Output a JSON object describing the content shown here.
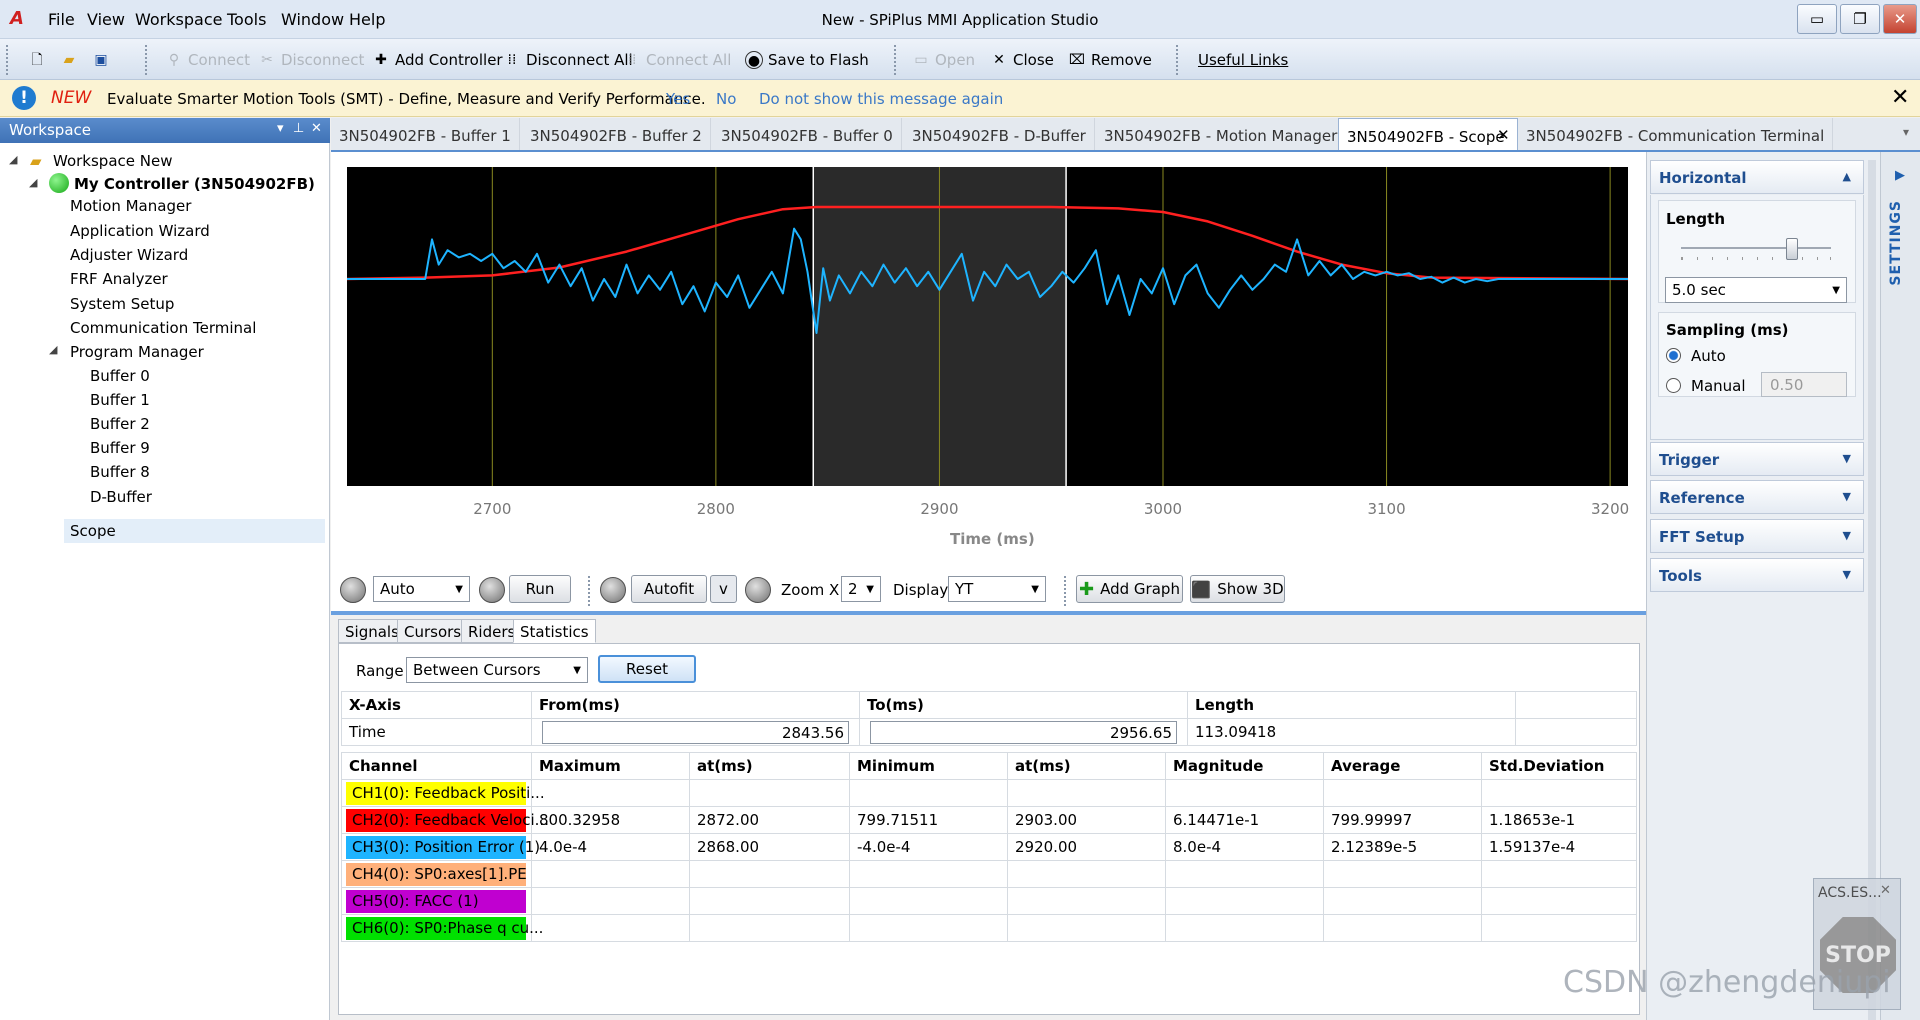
{
  "app": {
    "title": "New - SPiPlus MMI Application Studio",
    "logo": "A"
  },
  "menu": [
    "File",
    "View",
    "Workspace",
    "Tools",
    "Window",
    "Help"
  ],
  "window_controls": {
    "minimize": "▭",
    "restore": "❐",
    "close": "✕"
  },
  "toolbar": {
    "connect": "Connect",
    "disconnect": "Disconnect",
    "add_controller": "Add Controller",
    "disconnect_all": "Disconnect All",
    "connect_all": "Connect All",
    "save_to_flash": "Save to Flash",
    "open": "Open",
    "close": "Close",
    "remove": "Remove",
    "useful_links": "Useful Links"
  },
  "infobar": {
    "new": "NEW",
    "message": "Evaluate Smarter Motion Tools (SMT) - Define, Measure and Verify Performance.",
    "yes": "Yes",
    "no": "No",
    "dont_show": "Do not show this message again",
    "close": "✕"
  },
  "workspace": {
    "header": "Workspace",
    "root": "Workspace New",
    "controller": "My Controller (3N504902FB)",
    "items": [
      "Motion Manager",
      "Application Wizard",
      "Adjuster Wizard",
      "FRF Analyzer",
      "System Setup",
      "Communication Terminal",
      "Program Manager"
    ],
    "buffers": [
      "Buffer 0",
      "Buffer 1",
      "Buffer 2",
      "Buffer 9",
      "Buffer 8",
      "D-Buffer"
    ],
    "scope": "Scope"
  },
  "tabs": [
    "3N504902FB - Buffer 1",
    "3N504902FB - Buffer 2",
    "3N504902FB - Buffer 0",
    "3N504902FB - D-Buffer",
    "3N504902FB - Motion Manager",
    "3N504902FB - Scope",
    "3N504902FB - Communication Terminal"
  ],
  "active_tab": 5,
  "chart_data": {
    "type": "line",
    "xlabel": "Time (ms)",
    "xlim": [
      2635,
      3208
    ],
    "xticks": [
      2700,
      2800,
      2900,
      3000,
      3100,
      3200
    ],
    "cursor_region": [
      2843.56,
      2956.65
    ],
    "grid_x": [
      2700,
      2800,
      2900,
      3000,
      3100,
      3200
    ],
    "background": "#000000",
    "series": [
      {
        "color": "#ff2020",
        "x": [
          2635,
          2670,
          2700,
          2730,
          2760,
          2790,
          2810,
          2830,
          2845,
          2900,
          2950,
          2980,
          3000,
          3020,
          3040,
          3060,
          3080,
          3100,
          3120,
          3208
        ],
        "y": [
          0.0,
          0.02,
          0.05,
          0.16,
          0.38,
          0.65,
          0.83,
          0.97,
          1.0,
          1.0,
          1.0,
          0.98,
          0.93,
          0.8,
          0.6,
          0.38,
          0.2,
          0.08,
          0.02,
          0.0
        ]
      },
      {
        "color": "#1eb4ff",
        "x": [
          2635,
          2670,
          2673,
          2676,
          2680,
          2685,
          2690,
          2695,
          2700,
          2705,
          2710,
          2715,
          2720,
          2725,
          2730,
          2735,
          2740,
          2745,
          2750,
          2755,
          2760,
          2765,
          2770,
          2775,
          2780,
          2785,
          2790,
          2795,
          2800,
          2805,
          2810,
          2815,
          2820,
          2825,
          2830,
          2835,
          2838,
          2841,
          2845,
          2848,
          2851,
          2855,
          2860,
          2865,
          2870,
          2875,
          2880,
          2885,
          2890,
          2895,
          2900,
          2905,
          2910,
          2915,
          2920,
          2925,
          2930,
          2935,
          2940,
          2945,
          2950,
          2955,
          2960,
          2965,
          2970,
          2975,
          2980,
          2985,
          2990,
          2995,
          3000,
          3005,
          3010,
          3015,
          3020,
          3025,
          3030,
          3035,
          3040,
          3045,
          3050,
          3055,
          3060,
          3065,
          3070,
          3075,
          3080,
          3085,
          3090,
          3095,
          3100,
          3105,
          3110,
          3115,
          3120,
          3125,
          3130,
          3135,
          3140,
          3145,
          3150,
          3208
        ],
        "y": [
          0.0,
          0.0,
          0.55,
          0.2,
          0.4,
          0.3,
          0.35,
          0.25,
          0.35,
          0.15,
          0.25,
          0.1,
          0.35,
          -0.05,
          0.2,
          -0.1,
          0.15,
          -0.3,
          0.0,
          -0.25,
          0.2,
          -0.2,
          0.05,
          -0.15,
          0.1,
          -0.35,
          -0.1,
          -0.45,
          -0.05,
          -0.25,
          0.05,
          -0.4,
          -0.15,
          0.1,
          -0.2,
          0.7,
          0.55,
          0.1,
          -0.75,
          0.15,
          -0.3,
          0.05,
          -0.2,
          0.1,
          -0.1,
          0.2,
          -0.05,
          0.15,
          -0.1,
          0.1,
          -0.15,
          0.1,
          0.35,
          -0.3,
          0.1,
          -0.1,
          0.2,
          0.0,
          0.1,
          -0.25,
          -0.1,
          0.1,
          -0.05,
          0.15,
          0.4,
          -0.35,
          0.05,
          -0.5,
          0.0,
          -0.2,
          0.15,
          -0.35,
          0.05,
          0.2,
          -0.2,
          -0.4,
          -0.15,
          0.05,
          -0.15,
          0.0,
          0.2,
          0.1,
          0.55,
          0.05,
          0.25,
          0.05,
          0.2,
          0.0,
          0.1,
          0.05,
          0.1,
          0.05,
          0.08,
          0.0,
          0.03,
          -0.05,
          0.02,
          -0.05,
          0.0,
          -0.03,
          0.0,
          0.0
        ]
      }
    ]
  },
  "scope_controls": {
    "mode": "Auto",
    "run": "Run",
    "autofit": "Autofit",
    "v": "v",
    "zoom_label": "Zoom X",
    "zoom": "2",
    "display_label": "Display",
    "display": "YT",
    "add_graph": "Add Graph",
    "show3d": "Show 3D"
  },
  "stat_tabs": [
    "Signals",
    "Cursors",
    "Riders",
    "Statistics"
  ],
  "stats": {
    "range_label": "Range",
    "range": "Between Cursors",
    "reset": "Reset",
    "axis_header": [
      "X-Axis",
      "From(ms)",
      "To(ms)",
      "Length"
    ],
    "time_row": {
      "label": "Time",
      "from": "2843.56",
      "to": "2956.65",
      "length": "113.09418"
    },
    "ch_header": [
      "Channel",
      "Maximum",
      "at(ms)",
      "Minimum",
      "at(ms)",
      "Magnitude",
      "Average",
      "Std.Deviation"
    ],
    "channels": [
      {
        "name": "CH1(0): Feedback Positi...",
        "color": "#ffff00",
        "fg": "#000000",
        "vals": [
          "",
          "",
          "",
          "",
          "",
          "",
          ""
        ]
      },
      {
        "name": "CH2(0): Feedback Veloci...",
        "color": "#ff0000",
        "fg": "#000000",
        "vals": [
          "800.32958",
          "2872.00",
          "799.71511",
          "2903.00",
          "6.14471e-1",
          "799.99997",
          "1.18653e-1"
        ]
      },
      {
        "name": "CH3(0): Position Error (1)",
        "color": "#1eb4ff",
        "fg": "#000000",
        "vals": [
          "4.0e-4",
          "2868.00",
          "-4.0e-4",
          "2920.00",
          "8.0e-4",
          "2.12389e-5",
          "1.59137e-4"
        ]
      },
      {
        "name": "CH4(0): SP0:axes[1].PE",
        "color": "#ffb07a",
        "fg": "#000000",
        "vals": [
          "",
          "",
          "",
          "",
          "",
          "",
          ""
        ]
      },
      {
        "name": "CH5(0): FACC (1)",
        "color": "#c000d0",
        "fg": "#000000",
        "vals": [
          "",
          "",
          "",
          "",
          "",
          "",
          ""
        ]
      },
      {
        "name": "CH6(0): SP0:Phase q cu...",
        "color": "#00e000",
        "fg": "#000000",
        "vals": [
          "",
          "",
          "",
          "",
          "",
          "",
          ""
        ]
      }
    ]
  },
  "settings": {
    "horizontal": "Horizontal",
    "length_label": "Length",
    "length": "5.0 sec",
    "sampling_label": "Sampling (ms)",
    "auto": "Auto",
    "manual": "Manual",
    "manual_value": "0.50",
    "trigger": "Trigger",
    "reference": "Reference",
    "fft": "FFT Setup",
    "tools": "Tools",
    "strip": "SETTINGS"
  },
  "acs": {
    "title": "ACS.ES...",
    "stop": "STOP"
  },
  "watermark": "CSDN @zhengdeniupi"
}
